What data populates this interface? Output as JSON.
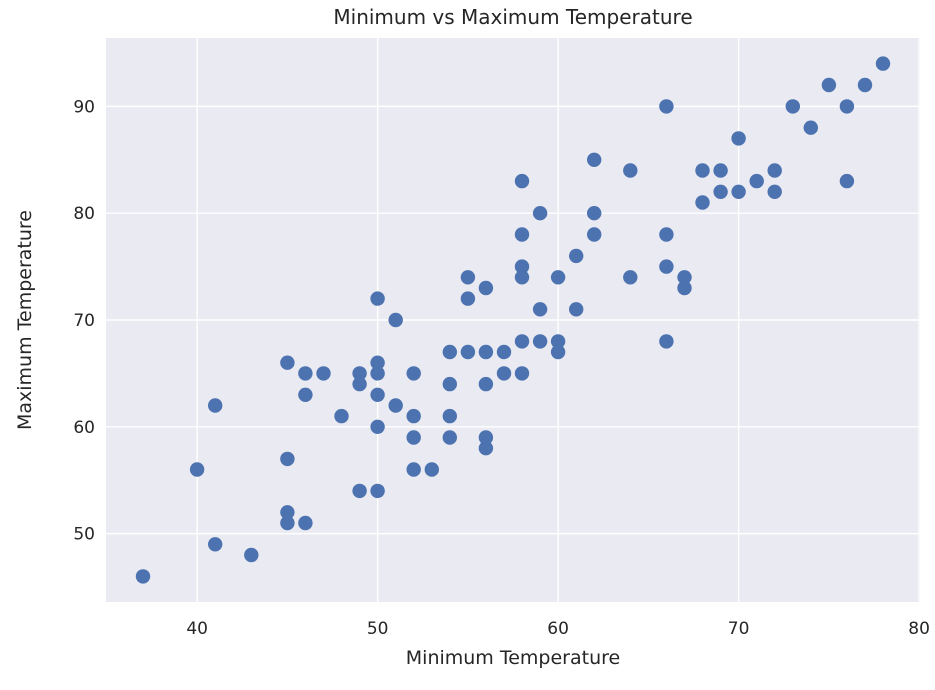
{
  "chart_data": {
    "type": "scatter",
    "title": "Minimum vs Maximum Temperature",
    "xlabel": "Minimum Temperature",
    "ylabel": "Maximum Temperature",
    "xlim": [
      34.95,
      80.05
    ],
    "ylim": [
      43.6,
      96.4
    ],
    "xticks": [
      40,
      50,
      60,
      70,
      80
    ],
    "yticks": [
      50,
      60,
      70,
      80,
      90
    ],
    "grid": true,
    "legend": "none",
    "style": {
      "figure_bg": "#ffffff",
      "plot_bg": "#eaeaf2",
      "grid_color": "#ffffff",
      "dot_color": "#4c72b0",
      "text_color": "#262626",
      "tick_font_size": 17,
      "dot_radius": 7.2
    },
    "points": [
      [
        37,
        46
      ],
      [
        40,
        56
      ],
      [
        41,
        49
      ],
      [
        41,
        62
      ],
      [
        43,
        48
      ],
      [
        45,
        51
      ],
      [
        45,
        52
      ],
      [
        45,
        57
      ],
      [
        45,
        66
      ],
      [
        46,
        51
      ],
      [
        46,
        63
      ],
      [
        46,
        65
      ],
      [
        47,
        65
      ],
      [
        48,
        61
      ],
      [
        49,
        54
      ],
      [
        49,
        64
      ],
      [
        49,
        65
      ],
      [
        50,
        54
      ],
      [
        50,
        60
      ],
      [
        50,
        63
      ],
      [
        50,
        65
      ],
      [
        50,
        66
      ],
      [
        50,
        72
      ],
      [
        51,
        62
      ],
      [
        51,
        70
      ],
      [
        52,
        56
      ],
      [
        52,
        59
      ],
      [
        52,
        61
      ],
      [
        52,
        65
      ],
      [
        53,
        56
      ],
      [
        54,
        59
      ],
      [
        54,
        61
      ],
      [
        54,
        64
      ],
      [
        54,
        67
      ],
      [
        55,
        67
      ],
      [
        55,
        72
      ],
      [
        55,
        74
      ],
      [
        56,
        58
      ],
      [
        56,
        59
      ],
      [
        56,
        64
      ],
      [
        56,
        67
      ],
      [
        56,
        73
      ],
      [
        57,
        65
      ],
      [
        57,
        67
      ],
      [
        58,
        65
      ],
      [
        58,
        68
      ],
      [
        58,
        74
      ],
      [
        58,
        75
      ],
      [
        58,
        78
      ],
      [
        58,
        83
      ],
      [
        59,
        68
      ],
      [
        59,
        71
      ],
      [
        59,
        80
      ],
      [
        60,
        67
      ],
      [
        60,
        68
      ],
      [
        60,
        74
      ],
      [
        61,
        71
      ],
      [
        61,
        76
      ],
      [
        62,
        78
      ],
      [
        62,
        80
      ],
      [
        62,
        85
      ],
      [
        64,
        74
      ],
      [
        64,
        84
      ],
      [
        66,
        68
      ],
      [
        66,
        75
      ],
      [
        66,
        78
      ],
      [
        66,
        90
      ],
      [
        67,
        73
      ],
      [
        67,
        74
      ],
      [
        68,
        81
      ],
      [
        68,
        84
      ],
      [
        69,
        82
      ],
      [
        69,
        84
      ],
      [
        70,
        82
      ],
      [
        70,
        87
      ],
      [
        71,
        83
      ],
      [
        72,
        82
      ],
      [
        72,
        84
      ],
      [
        73,
        90
      ],
      [
        74,
        88
      ],
      [
        75,
        92
      ],
      [
        76,
        83
      ],
      [
        76,
        90
      ],
      [
        77,
        92
      ],
      [
        78,
        94
      ]
    ]
  }
}
